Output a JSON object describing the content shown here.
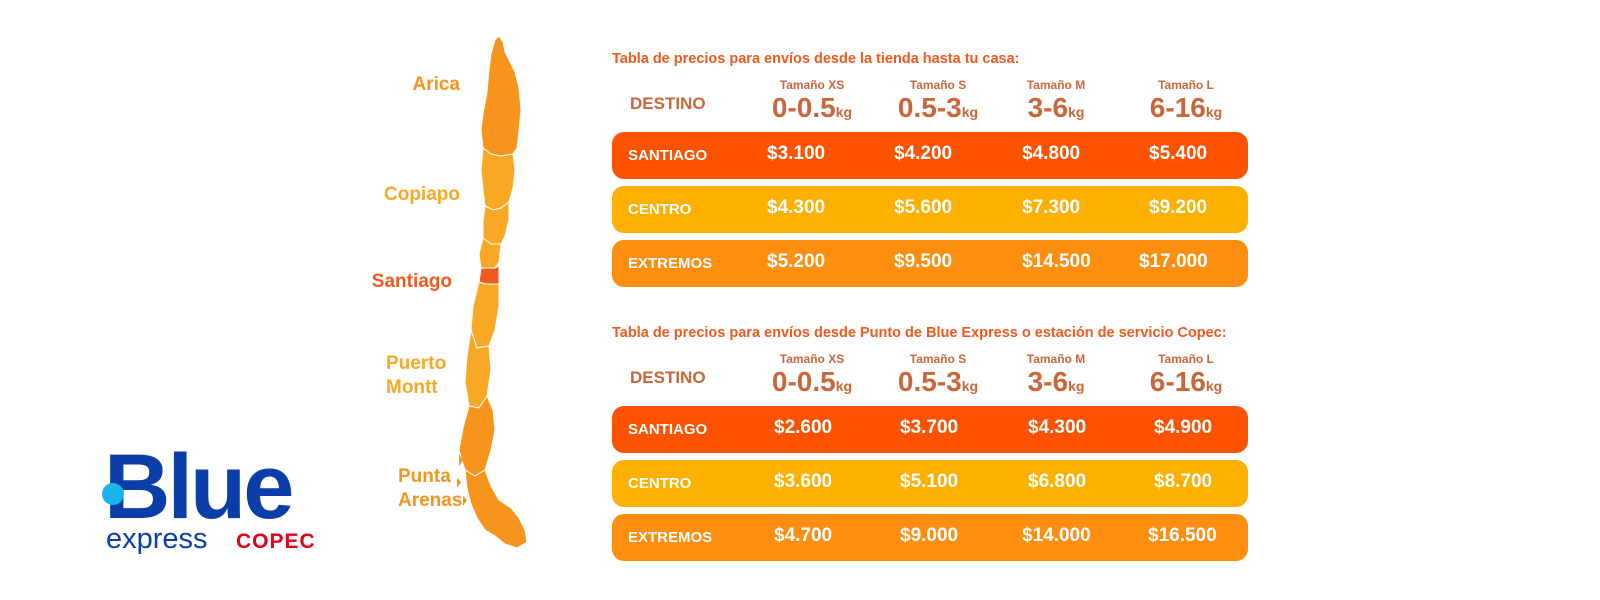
{
  "map": {
    "cities": [
      "Arica",
      "Copiapo",
      "Santiago",
      "Puerto Montt",
      "Punta Arenas"
    ]
  },
  "logo": {
    "blue": "Blue",
    "express": "express",
    "copec": "COPEC"
  },
  "tables": [
    {
      "title": "Tabla de precios para envíos desde la tienda hasta tu casa:",
      "destino_label": "DESTINO",
      "sizes": [
        {
          "label": "Tamaño XS",
          "range": "0-0.5",
          "unit": "kg"
        },
        {
          "label": "Tamaño S",
          "range": "0.5-3",
          "unit": "kg"
        },
        {
          "label": "Tamaño M",
          "range": "3-6",
          "unit": "kg"
        },
        {
          "label": "Tamaño L",
          "range": "6-16",
          "unit": "kg"
        }
      ],
      "rows": [
        {
          "dest": "SANTIAGO",
          "prices": [
            "$3.100",
            "$4.200",
            "$4.800",
            "$5.400"
          ]
        },
        {
          "dest": "CENTRO",
          "prices": [
            "$4.300",
            "$5.600",
            "$7.300",
            "$9.200"
          ]
        },
        {
          "dest": "EXTREMOS",
          "prices": [
            "$5.200",
            "$9.500",
            "$14.500",
            "$17.000"
          ]
        }
      ]
    },
    {
      "title": "Tabla de precios para envíos desde Punto de Blue Express o estación de servicio Copec:",
      "destino_label": "DESTINO",
      "sizes": [
        {
          "label": "Tamaño XS",
          "range": "0-0.5",
          "unit": "kg"
        },
        {
          "label": "Tamaño S",
          "range": "0.5-3",
          "unit": "kg"
        },
        {
          "label": "Tamaño M",
          "range": "3-6",
          "unit": "kg"
        },
        {
          "label": "Tamaño L",
          "range": "6-16",
          "unit": "kg"
        }
      ],
      "rows": [
        {
          "dest": "SANTIAGO",
          "prices": [
            "$2.600",
            "$3.700",
            "$4.300",
            "$4.900"
          ]
        },
        {
          "dest": "CENTRO",
          "prices": [
            "$3.600",
            "$5.100",
            "$6.800",
            "$8.700"
          ]
        },
        {
          "dest": "EXTREMOS",
          "prices": [
            "$4.700",
            "$9.000",
            "$14.000",
            "$16.500"
          ]
        }
      ]
    }
  ],
  "colors": {
    "santiago_row": "#fd5200",
    "centro_row": "#fdb000",
    "extremos_row": "#fd8e10",
    "header_text": "#c9663a",
    "title_text": "#f05a1e",
    "brand_blue": "#0b3ea8",
    "brand_dot": "#15b4ea",
    "copec_red": "#e2001a"
  }
}
